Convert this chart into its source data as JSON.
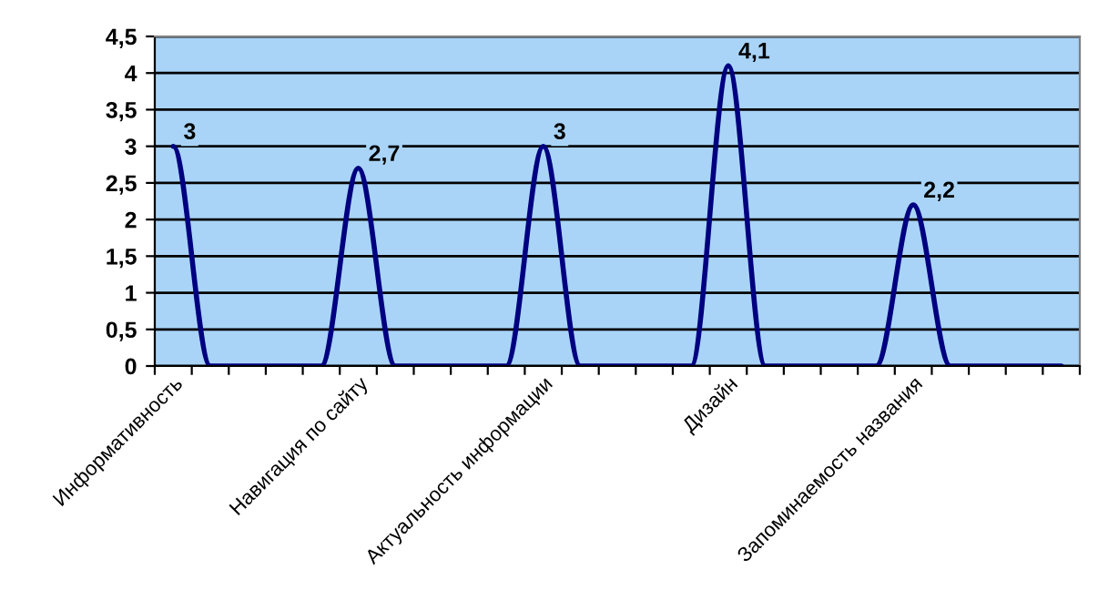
{
  "chart_data": {
    "type": "line",
    "categories": [
      "Информативность",
      null,
      null,
      null,
      null,
      "Навигация по сайту",
      null,
      null,
      null,
      null,
      "Актуальность информации",
      null,
      null,
      null,
      null,
      "Дизайн",
      null,
      null,
      null,
      null,
      "Запоминаемость названия",
      null,
      null,
      null,
      null
    ],
    "series": [
      {
        "color": "#000080",
        "values": [
          3,
          0,
          0,
          0,
          0,
          2.7,
          0,
          0,
          0,
          0,
          3,
          0,
          0,
          0,
          0,
          4.1,
          0,
          0,
          0,
          0,
          2.2,
          0,
          0,
          0,
          0
        ],
        "value_labels": [
          "3",
          null,
          null,
          null,
          null,
          "2,7",
          null,
          null,
          null,
          null,
          "3",
          null,
          null,
          null,
          null,
          "4,1",
          null,
          null,
          null,
          null,
          "2,2",
          null,
          null,
          null,
          null
        ]
      }
    ],
    "ylim": [
      0,
      4.5
    ],
    "yticks": [
      0,
      {
        "value": 0.5,
        "label": "0,5"
      },
      1,
      {
        "value": 1.5,
        "label": "1,5"
      },
      2,
      {
        "value": 2.5,
        "label": "2,5"
      },
      3,
      {
        "value": 3.5,
        "label": "3,5"
      },
      4,
      {
        "value": 4.5,
        "label": "4,5"
      }
    ],
    "grid": "y",
    "marker": "none",
    "line_style": "solid"
  }
}
